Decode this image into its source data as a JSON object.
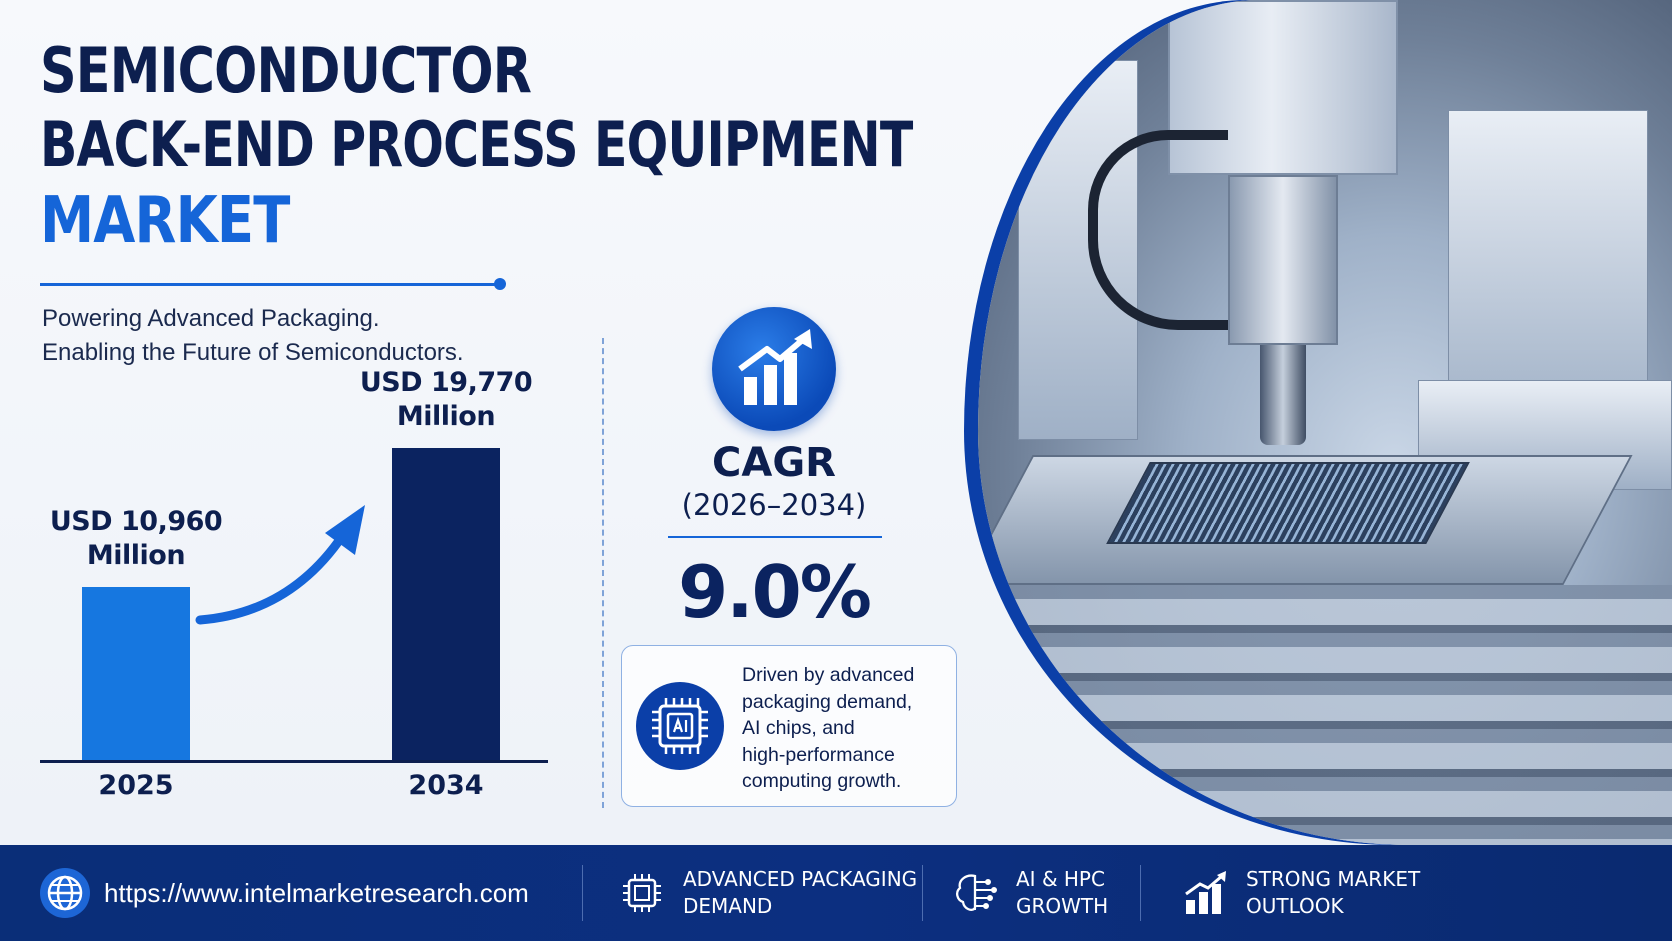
{
  "title": {
    "line1": "SEMICONDUCTOR",
    "line2": "BACK-END PROCESS EQUIPMENT",
    "line3": "MARKET"
  },
  "subtitle": {
    "line1": "Powering Advanced Packaging.",
    "line2": "Enabling the Future of Semiconductors."
  },
  "chart_data": {
    "type": "bar",
    "categories": [
      "2025",
      "2034"
    ],
    "values": [
      10960,
      19770
    ],
    "value_labels": [
      {
        "line1": "USD 10,960",
        "line2": "Million"
      },
      {
        "line1": "USD 19,770",
        "line2": "Million"
      }
    ],
    "colors": [
      "#1677e0",
      "#0b2360"
    ]
  },
  "cagr": {
    "label": "CAGR",
    "period": "(2026–2034)",
    "value": "9.0%",
    "icon": "growth-chart-icon"
  },
  "driver": {
    "icon": "ai-chip-icon",
    "lines": [
      "Driven by advanced",
      "packaging demand,",
      "AI chips, and",
      "high-performance",
      "computing growth."
    ]
  },
  "footer": {
    "url": "https://www.intelmarketresearch.com",
    "items": [
      {
        "icon": "chip-icon",
        "line1": "ADVANCED PACKAGING",
        "line2": "DEMAND"
      },
      {
        "icon": "brain-circuit-icon",
        "line1": "AI & HPC",
        "line2": "GROWTH"
      },
      {
        "icon": "bar-chart-icon",
        "line1": "STRONG MARKET",
        "line2": "OUTLOOK"
      }
    ]
  },
  "colors": {
    "navy": "#0d1f4f",
    "accent": "#1565d8",
    "footer": "#0c2f80"
  }
}
